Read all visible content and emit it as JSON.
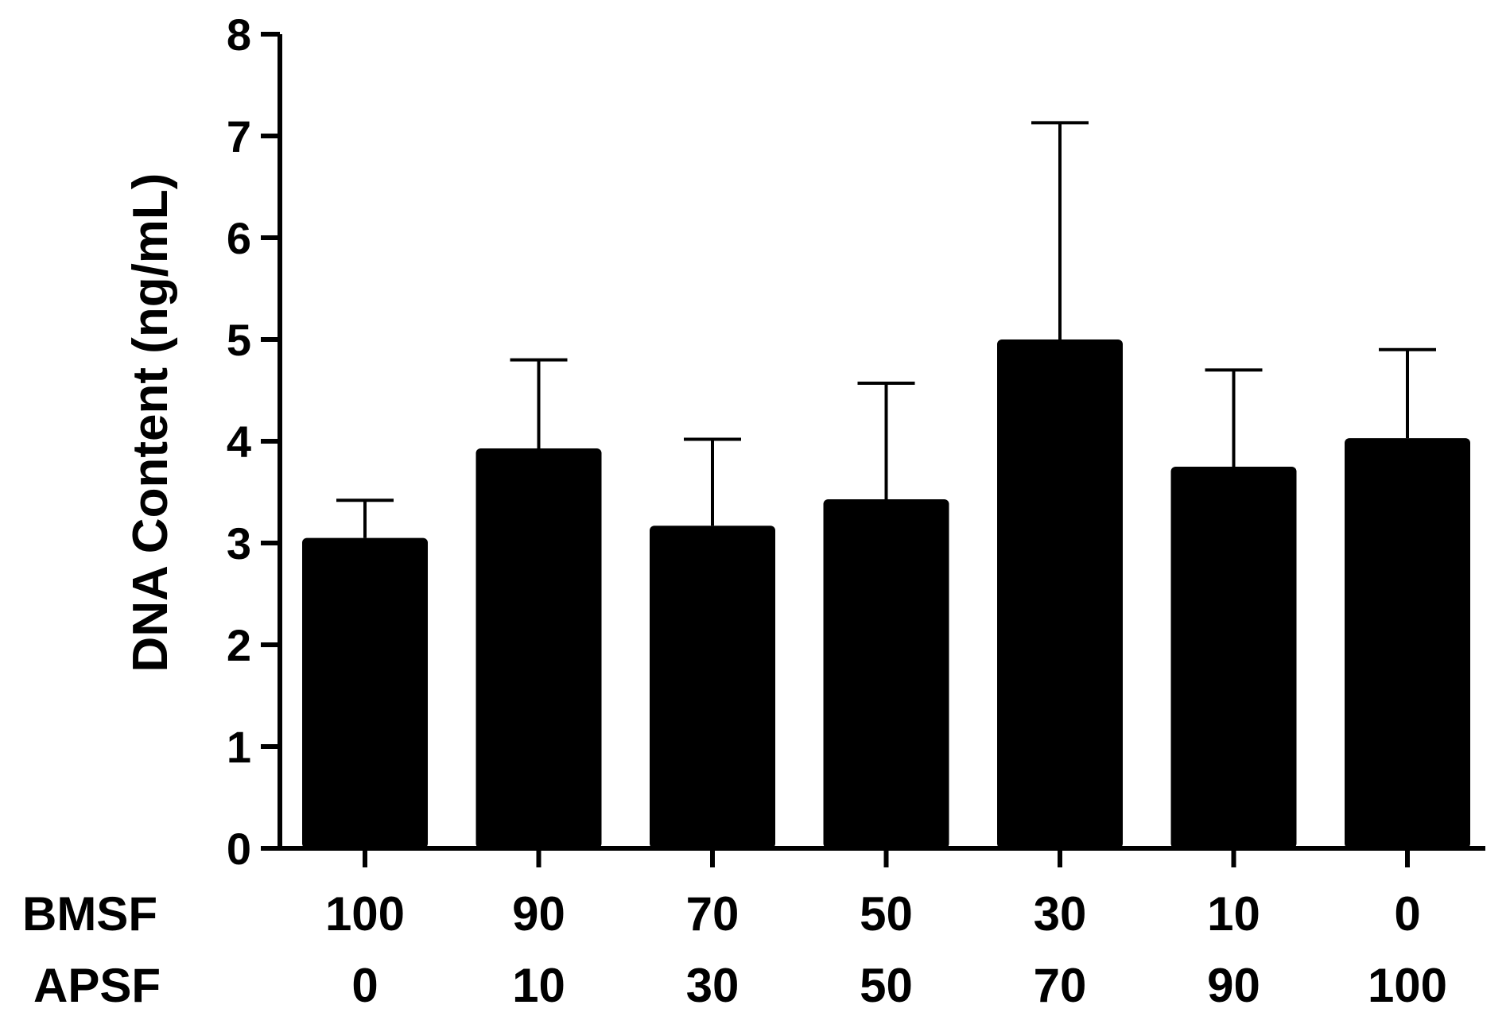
{
  "chart_data": {
    "type": "bar",
    "title": "",
    "ylabel": "DNA Content (ng/mL)",
    "xlabel": "",
    "ylim": [
      0,
      8
    ],
    "yticks": [
      0,
      1,
      2,
      3,
      4,
      5,
      6,
      7,
      8
    ],
    "grid": false,
    "row_labels": [
      "BMSF",
      "APSF"
    ],
    "categories": [
      {
        "BMSF": "100",
        "APSF": "0"
      },
      {
        "BMSF": "90",
        "APSF": "10"
      },
      {
        "BMSF": "70",
        "APSF": "30"
      },
      {
        "BMSF": "50",
        "APSF": "50"
      },
      {
        "BMSF": "30",
        "APSF": "70"
      },
      {
        "BMSF": "10",
        "APSF": "90"
      },
      {
        "BMSF": "0",
        "APSF": "100"
      }
    ],
    "values": [
      3.05,
      3.93,
      3.17,
      3.43,
      5.0,
      3.75,
      4.03
    ],
    "error_upper": [
      3.42,
      4.8,
      4.02,
      4.57,
      7.13,
      4.7,
      4.9
    ],
    "bar_color": "#000000"
  }
}
